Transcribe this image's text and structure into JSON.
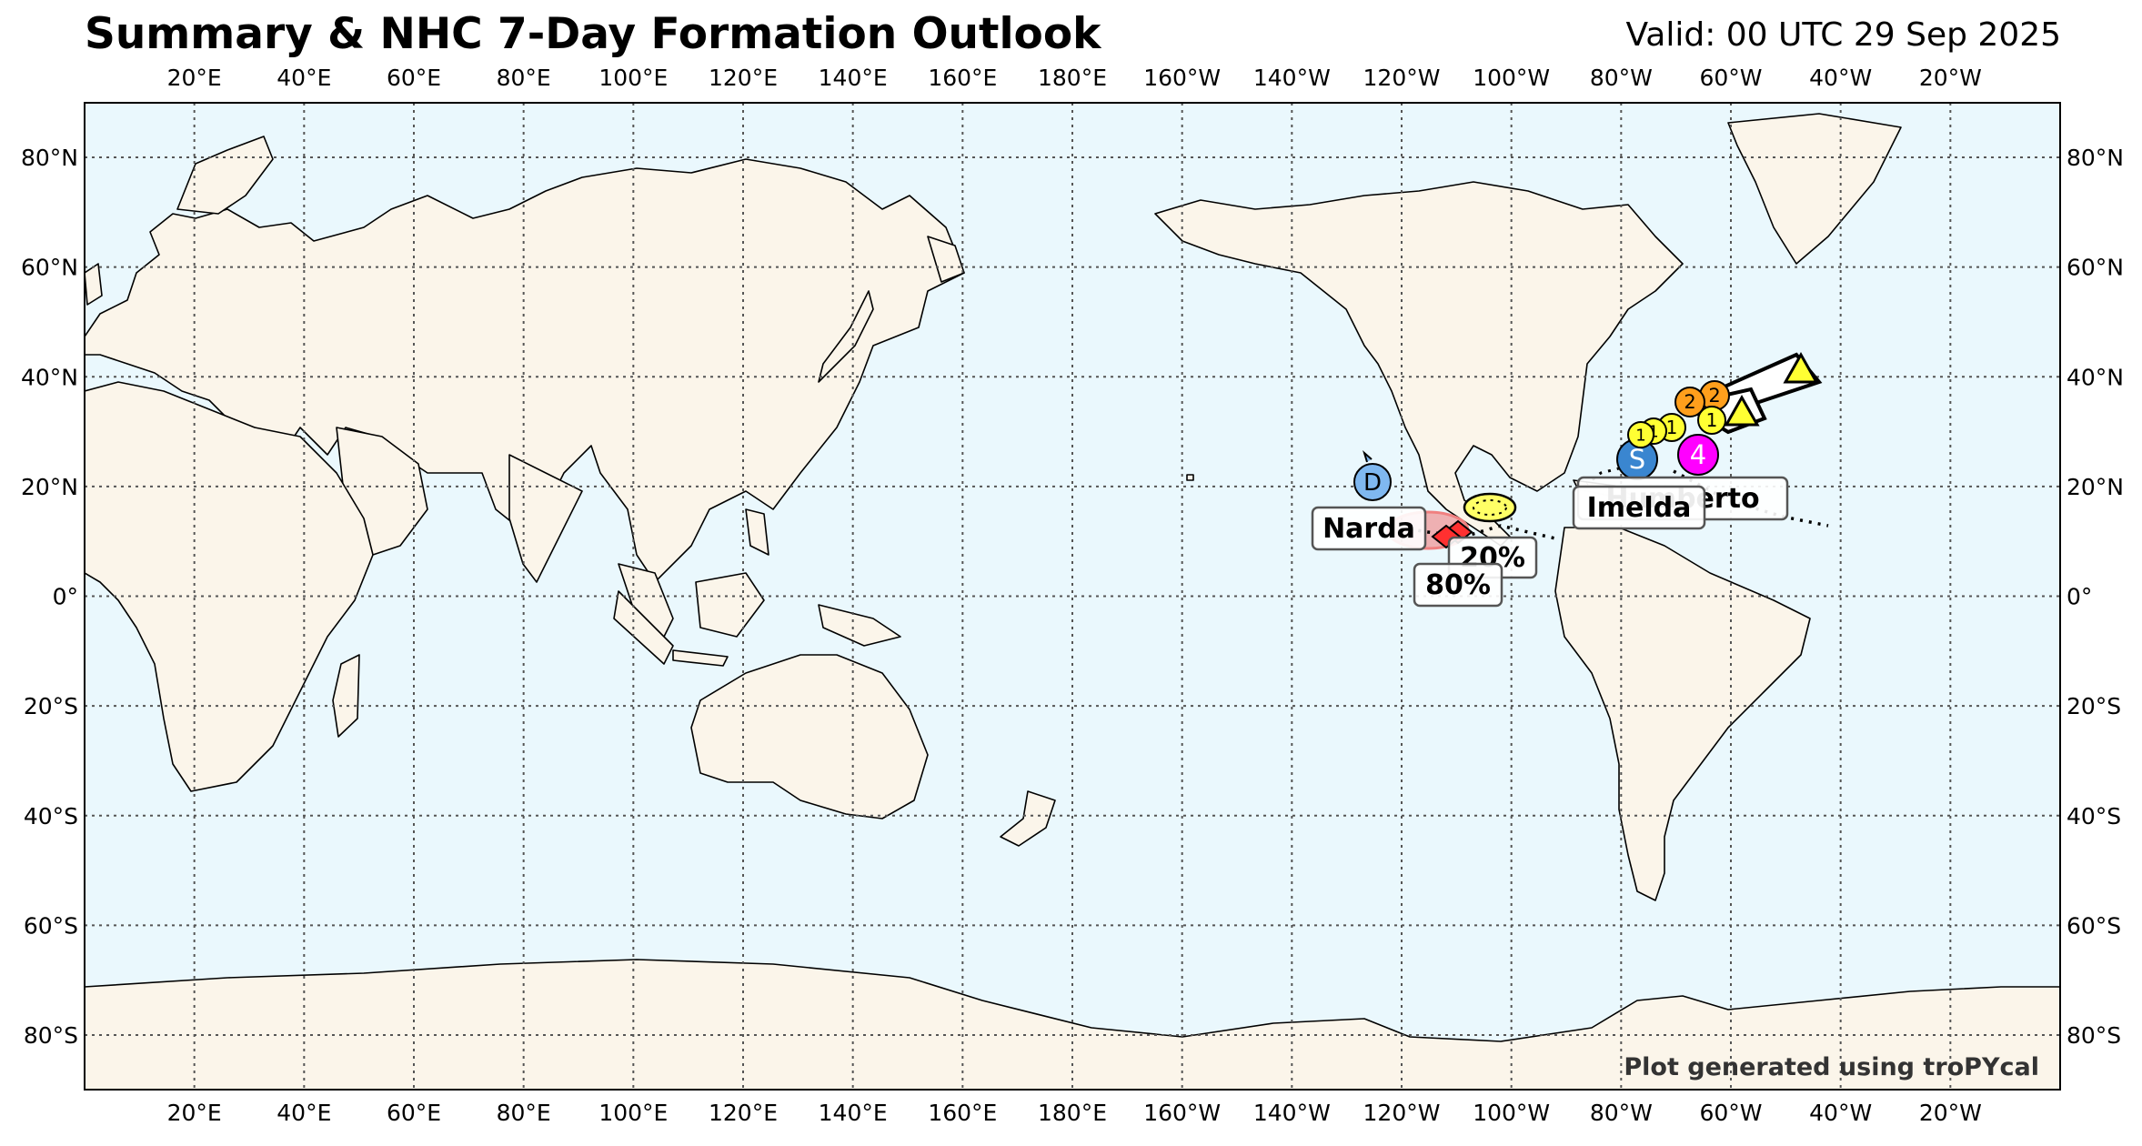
{
  "title": "Summary & NHC 7-Day Formation Outlook",
  "valid": "Valid: 00 UTC 29 Sep 2025",
  "credit": "Plot generated using troPYcal",
  "colors": {
    "ocean": "#eaf8fd",
    "land": "#fbf5ea",
    "coast": "#000000",
    "grid": "#555555",
    "high_risk": "#f08080",
    "low_risk": "#ffff66",
    "tropical_storm": "#ffff33",
    "cat1": "#ffff33",
    "cat2": "#ff9f1c",
    "cat4": "#ff00ff",
    "subtropical": "#3a86d0",
    "depression": "#7fb8f0"
  },
  "lon_ticks": [
    "20°E",
    "40°E",
    "60°E",
    "80°E",
    "100°E",
    "120°E",
    "140°E",
    "160°E",
    "180°E",
    "160°W",
    "140°W",
    "120°W",
    "100°W",
    "80°W",
    "60°W",
    "40°W",
    "20°W"
  ],
  "lat_ticks": [
    "80°N",
    "60°N",
    "40°N",
    "20°N",
    "0°",
    "20°S",
    "40°S",
    "60°S",
    "80°S"
  ],
  "storms": [
    {
      "name": "Narda"
    },
    {
      "name": "Imelda"
    },
    {
      "name": "Humberto"
    }
  ],
  "outlooks": [
    {
      "probability": "80%"
    },
    {
      "probability": "20%"
    }
  ],
  "markers": [
    {
      "symbol": "D",
      "type": "depression"
    },
    {
      "symbol": "S",
      "type": "subtropical"
    },
    {
      "symbol": "4",
      "type": "cat4"
    },
    {
      "symbol": "2",
      "type": "cat2"
    },
    {
      "symbol": "2",
      "type": "cat2"
    },
    {
      "symbol": "1",
      "type": "cat1"
    },
    {
      "symbol": "1",
      "type": "cat1"
    },
    {
      "symbol": "1",
      "type": "cat1"
    },
    {
      "symbol": "1",
      "type": "cat1"
    }
  ]
}
